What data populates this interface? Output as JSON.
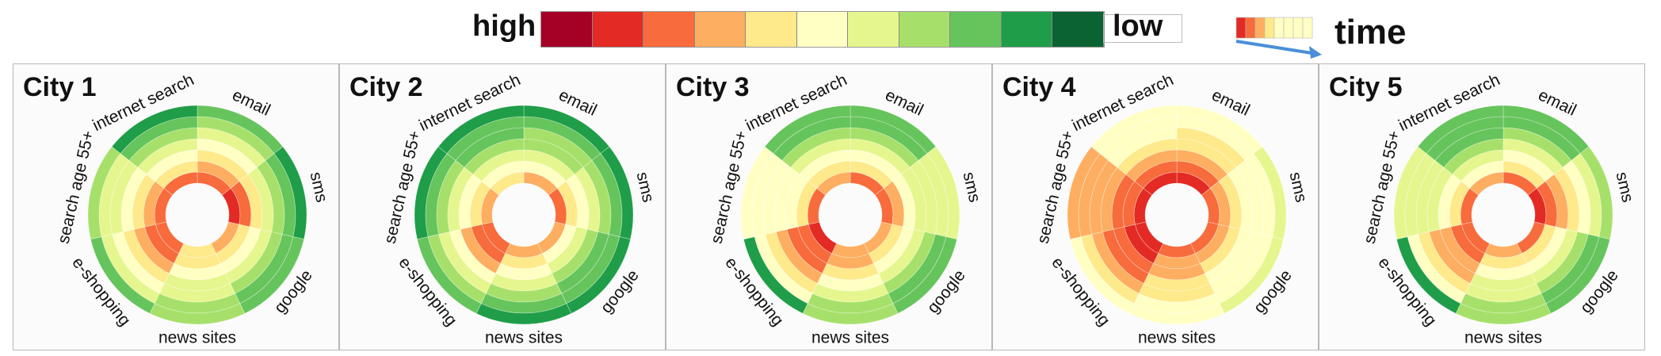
{
  "legend": {
    "high_label": "high",
    "low_label": "low",
    "time_label": "time",
    "scale_colors": [
      "#a50026",
      "#e32a24",
      "#f76b3c",
      "#fdae61",
      "#fee98b",
      "#ffffc4",
      "#e6f68e",
      "#a6e06a",
      "#66c45c",
      "#1f9d48",
      "#0b6333"
    ]
  },
  "chart_data": {
    "type": "radial-heatmap",
    "categories": [
      "email",
      "sms",
      "google",
      "news sites",
      "e-shopping",
      "search age 55+",
      "internet search"
    ],
    "rings": 7,
    "ring_order": "inner ring = earliest time, outer ring = latest time",
    "value_scale": "0 = low (dark green) … 10 = high (dark red)",
    "cities": [
      {
        "name": "City 1",
        "values": [
          [
            8,
            7,
            6,
            5,
            4,
            3,
            2
          ],
          [
            9,
            8,
            6,
            4,
            3,
            2,
            1
          ],
          [
            7,
            6,
            5,
            4,
            3,
            2,
            2
          ],
          [
            6,
            6,
            5,
            4,
            4,
            3,
            3
          ],
          [
            8,
            8,
            7,
            6,
            5,
            4,
            2
          ],
          [
            8,
            7,
            6,
            5,
            4,
            4,
            3
          ],
          [
            8,
            6,
            5,
            4,
            3,
            2,
            1
          ]
        ]
      },
      {
        "name": "City 2",
        "values": [
          [
            7,
            5,
            4,
            3,
            3,
            2,
            1
          ],
          [
            8,
            6,
            5,
            4,
            3,
            2,
            1
          ],
          [
            7,
            5,
            4,
            3,
            2,
            2,
            1
          ],
          [
            7,
            6,
            5,
            4,
            3,
            2,
            1
          ],
          [
            8,
            8,
            7,
            5,
            4,
            3,
            2
          ],
          [
            7,
            6,
            5,
            4,
            3,
            2,
            1
          ],
          [
            6,
            5,
            4,
            3,
            2,
            2,
            1
          ]
        ]
      },
      {
        "name": "City 3",
        "values": [
          [
            8,
            6,
            5,
            4,
            3,
            2,
            2
          ],
          [
            8,
            7,
            5,
            4,
            4,
            4,
            4
          ],
          [
            7,
            6,
            5,
            4,
            3,
            2,
            2
          ],
          [
            7,
            7,
            6,
            5,
            4,
            3,
            3
          ],
          [
            9,
            8,
            8,
            7,
            6,
            5,
            1
          ],
          [
            8,
            6,
            5,
            5,
            5,
            5,
            5
          ],
          [
            7,
            6,
            5,
            4,
            3,
            2,
            2
          ]
        ]
      },
      {
        "name": "City 4",
        "values": [
          [
            9,
            8,
            7,
            6,
            6,
            5,
            5
          ],
          [
            8,
            7,
            6,
            5,
            5,
            5,
            4
          ],
          [
            8,
            7,
            6,
            5,
            5,
            5,
            4
          ],
          [
            8,
            7,
            7,
            6,
            6,
            5,
            5
          ],
          [
            9,
            9,
            8,
            8,
            7,
            6,
            5
          ],
          [
            9,
            8,
            8,
            7,
            7,
            7,
            7
          ],
          [
            9,
            8,
            7,
            6,
            5,
            5,
            5
          ]
        ]
      },
      {
        "name": "City 5",
        "values": [
          [
            8,
            6,
            5,
            4,
            3,
            2,
            2
          ],
          [
            9,
            8,
            7,
            6,
            5,
            4,
            3
          ],
          [
            8,
            6,
            5,
            4,
            3,
            2,
            2
          ],
          [
            7,
            6,
            5,
            4,
            4,
            3,
            3
          ],
          [
            8,
            8,
            7,
            7,
            6,
            5,
            1
          ],
          [
            8,
            6,
            5,
            4,
            4,
            4,
            4
          ],
          [
            7,
            5,
            4,
            3,
            2,
            2,
            2
          ]
        ]
      }
    ]
  }
}
